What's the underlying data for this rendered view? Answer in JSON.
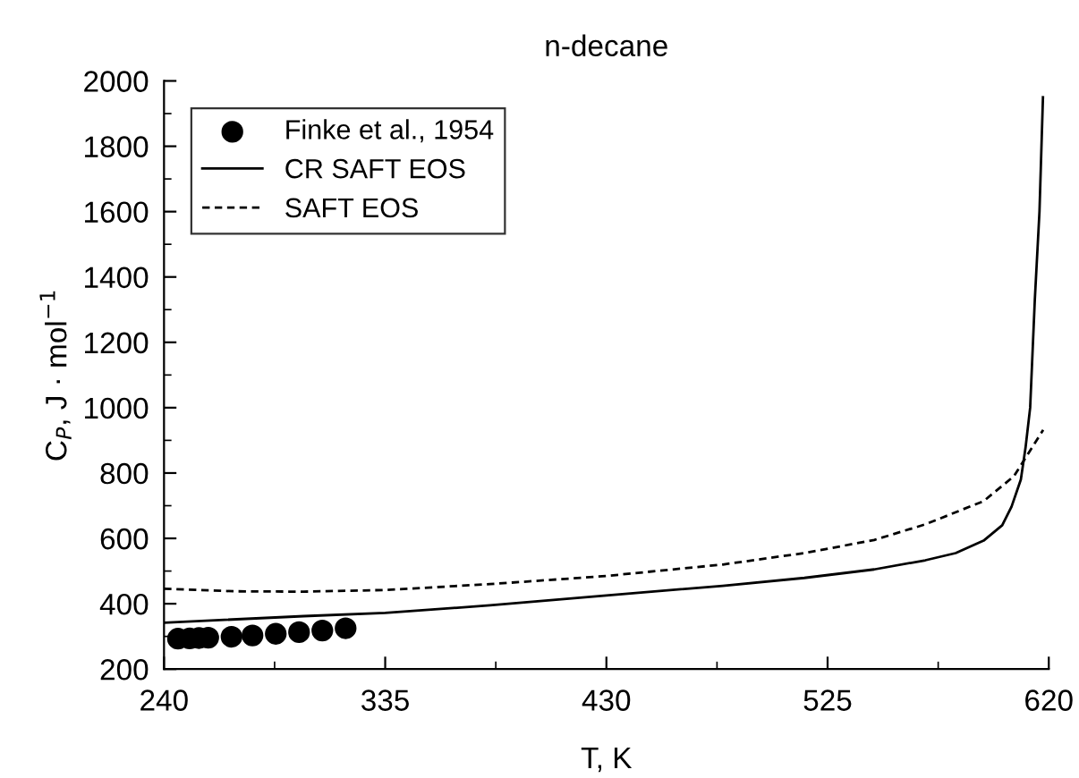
{
  "chart_data": {
    "type": "line",
    "title": "n-decane",
    "xlabel": "T, K",
    "ylabel": "C$_{P}$, J · mol$^{−1}$",
    "xlim": [
      240,
      620
    ],
    "xticks": [
      240,
      335,
      430,
      525,
      620
    ],
    "ylim": [
      200,
      2000
    ],
    "yticks": [
      200,
      400,
      600,
      800,
      1000,
      1200,
      1400,
      1600,
      1800,
      2000
    ],
    "grid": false,
    "legend": "top left",
    "series": [
      {
        "name": "Finke et al., 1954",
        "type": "scatter",
        "marker": "circle",
        "color": "#000000",
        "x": [
          246,
          251,
          255,
          259,
          269,
          278,
          288,
          298,
          308,
          318
        ],
        "values": [
          293,
          294,
          295,
          296,
          299,
          303,
          308,
          313,
          318,
          325
        ]
      },
      {
        "name": "CR SAFT EOS",
        "line_style": "solid",
        "color": "#000000",
        "x": [
          240,
          300,
          335,
          380,
          430,
          480,
          515,
          545,
          567,
          580,
          592,
          600,
          604,
          608,
          610,
          612,
          614,
          616,
          617.5
        ],
        "values": [
          342,
          362,
          372,
          395,
          425,
          455,
          479,
          505,
          533,
          555,
          593,
          640,
          697,
          780,
          877,
          1000,
          1330,
          1600,
          1950
        ]
      },
      {
        "name": "SAFT EOS",
        "line_style": "dashed",
        "color": "#000000",
        "x": [
          240,
          270,
          300,
          335,
          380,
          430,
          480,
          515,
          545,
          567,
          592,
          605,
          617.6
        ],
        "values": [
          446,
          438,
          437,
          442,
          460,
          485,
          520,
          555,
          595,
          643,
          714,
          790,
          932
        ]
      }
    ]
  }
}
